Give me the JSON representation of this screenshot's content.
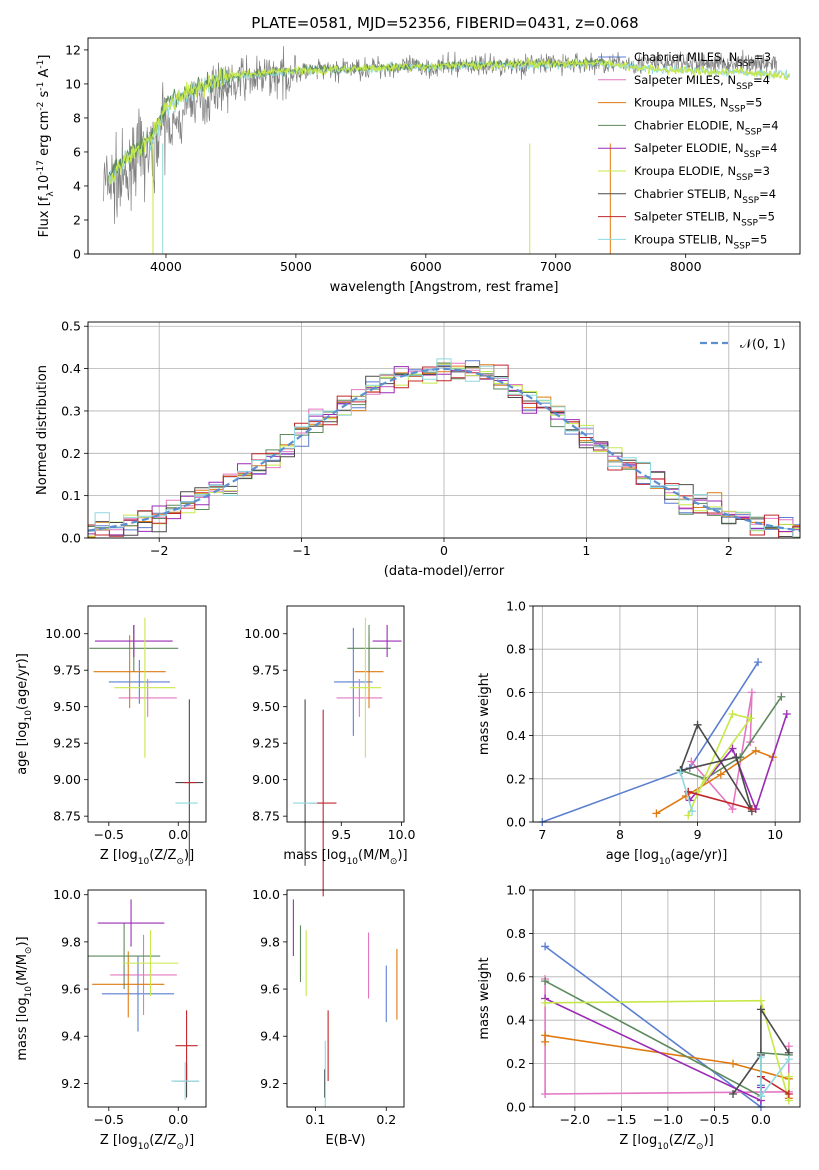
{
  "figure": {
    "title": "PLATE=0581, MJD=52356, FIBERID=0431, z=0.068"
  },
  "models": [
    {
      "name": "Chabrier MILES, N",
      "sub": "SSP",
      "tail": "=3",
      "color": "#5b7fd0"
    },
    {
      "name": "Salpeter MILES, N",
      "sub": "SSP",
      "tail": "=4",
      "color": "#e377c2"
    },
    {
      "name": "Kroupa MILES, N",
      "sub": "SSP",
      "tail": "=5",
      "color": "#e07a10"
    },
    {
      "name": "Chabrier ELODIE, N",
      "sub": "SSP",
      "tail": "=4",
      "color": "#5e8a5e"
    },
    {
      "name": "Salpeter ELODIE, N",
      "sub": "SSP",
      "tail": "=4",
      "color": "#9b2bb5"
    },
    {
      "name": "Kroupa ELODIE, N",
      "sub": "SSP",
      "tail": "=3",
      "color": "#c7e84a"
    },
    {
      "name": "Chabrier STELIB, N",
      "sub": "SSP",
      "tail": "=4",
      "color": "#4a4a4a"
    },
    {
      "name": "Salpeter STELIB, N",
      "sub": "SSP",
      "tail": "=5",
      "color": "#c0272d"
    },
    {
      "name": "Kroupa STELIB, N",
      "sub": "SSP",
      "tail": "=5",
      "color": "#8fd9e0"
    }
  ],
  "chart_data": [
    {
      "id": "spectrum",
      "type": "line",
      "xlabel": "wavelength [Angstrom, rest frame]",
      "ylabel": "Flux [f",
      "ylabel_sub": "λ",
      "ylabel_tail": "10",
      "ylabel_exp": "-17",
      "ylabel_units": " erg cm",
      "ylabel_exp2": "-2",
      "ylabel_s": " s",
      "ylabel_exp3": "-1",
      "ylabel_A": " A",
      "ylabel_exp4": "-1",
      "ylabel_end": "]",
      "xlim": [
        3400,
        8880
      ],
      "ylim": [
        0,
        12.7
      ],
      "xticks": [
        4000,
        5000,
        6000,
        7000,
        8000
      ],
      "yticks": [
        0,
        2,
        4,
        6,
        8,
        10,
        12
      ],
      "legend": "right",
      "series": [
        {
          "model": 8,
          "x": [
            3560,
            3700,
            3900,
            4000,
            4200,
            4400,
            4600,
            4800,
            5000,
            5200,
            5400,
            5600,
            5800,
            6000,
            6200,
            6400,
            6600,
            6800,
            7000,
            7200,
            7400,
            7600,
            7800,
            8000,
            8200,
            8400,
            8600,
            8800
          ],
          "y": [
            4.2,
            5.5,
            6.8,
            8.6,
            9.6,
            10.2,
            10.5,
            10.6,
            10.8,
            10.8,
            10.9,
            10.9,
            11.0,
            11.0,
            11.0,
            11.1,
            11.1,
            11.1,
            11.1,
            11.2,
            11.2,
            11.0,
            10.8,
            10.8,
            10.7,
            10.7,
            10.6,
            10.6
          ]
        },
        {
          "model": 3,
          "x": [
            3560,
            3700,
            3900,
            4000,
            4200,
            4400,
            4600,
            4800,
            5000,
            5200,
            5400,
            5600,
            5800,
            6000,
            6200,
            6400,
            6600,
            6800,
            7000,
            7200,
            7400
          ],
          "y": [
            4.6,
            5.7,
            7.0,
            8.8,
            9.7,
            10.3,
            10.5,
            10.7,
            10.8,
            10.9,
            10.9,
            11.0,
            11.0,
            11.1,
            11.1,
            11.1,
            11.2,
            11.2,
            11.2,
            11.3,
            11.3
          ]
        },
        {
          "model": 5,
          "x": [
            3560,
            3700,
            3900,
            4000,
            4200,
            4400,
            4600,
            4800,
            5000,
            5200,
            5400,
            5600,
            5800,
            6000,
            6200,
            6400,
            6600,
            6800,
            7000,
            7200,
            7400,
            7600,
            7800,
            8000,
            8200,
            8400,
            8600,
            8800
          ],
          "y": [
            4.4,
            5.6,
            6.9,
            8.7,
            9.6,
            10.3,
            10.6,
            10.7,
            10.8,
            10.8,
            10.9,
            10.9,
            11.0,
            11.0,
            11.1,
            11.1,
            11.1,
            11.2,
            11.2,
            11.2,
            11.2,
            11.0,
            10.8,
            10.8,
            10.7,
            10.7,
            10.6,
            10.5
          ]
        }
      ],
      "observed": {
        "x0": 3520,
        "x1": 7420,
        "ymean": [
          4.2,
          5.8,
          7.5,
          9.0,
          9.8,
          10.3,
          10.5,
          10.7,
          10.8,
          10.9,
          11.0,
          11.0,
          11.0,
          11.1,
          11.1,
          11.1,
          11.2,
          11.2,
          11.2,
          11.2
        ],
        "scatter": 1.8
      }
    },
    {
      "id": "residuals",
      "type": "histogram",
      "xlabel": "(data-model)/error",
      "ylabel": "Normed distribution",
      "xlim": [
        -2.5,
        2.5
      ],
      "ylim": [
        0,
        0.51
      ],
      "xticks": [
        -2,
        -1,
        0,
        1,
        2
      ],
      "yticks": [
        0.0,
        0.1,
        0.2,
        0.3,
        0.4,
        0.5
      ],
      "bin_width": 0.1,
      "reference_label": "𝒩(0, 1)",
      "legend": "top-right",
      "grid": true
    },
    {
      "id": "age-vs-Z",
      "type": "errorbar",
      "xlabel": "Z [log",
      "xlabel_sub": "10",
      "xlabel_tail": "(Z/Z",
      "xlabel_sub2": "⊙",
      "xlabel_end": ")]",
      "ylabel": "age  [log",
      "ylabel_sub": "10",
      "ylabel_tail": "(age/yr)]",
      "xlim": [
        -0.65,
        0.2
      ],
      "ylim": [
        8.71,
        10.19
      ],
      "xticks": [
        -0.5,
        0.0
      ],
      "xticklabels": [
        "−0.5",
        "0.0"
      ],
      "yticks": [
        8.75,
        9.0,
        9.25,
        9.5,
        9.75,
        10.0
      ],
      "points": [
        {
          "model": 0,
          "x": -0.28,
          "xerr": 0.22,
          "y": 9.67,
          "yerr": 0.15
        },
        {
          "model": 1,
          "x": -0.22,
          "xerr": 0.21,
          "y": 9.56,
          "yerr": 0.13
        },
        {
          "model": 2,
          "x": -0.35,
          "xerr": 0.26,
          "y": 9.74,
          "yerr": 0.25
        },
        {
          "model": 3,
          "x": -0.32,
          "xerr": 0.32,
          "y": 9.9,
          "yerr": 0.16
        },
        {
          "model": 4,
          "x": -0.32,
          "xerr": 0.28,
          "y": 9.95,
          "yerr": 0.11
        },
        {
          "model": 5,
          "x": -0.24,
          "xerr": 0.22,
          "y": 9.63,
          "yerr": 0.48
        },
        {
          "model": 6,
          "x": 0.08,
          "xerr": 0.1,
          "y": 8.98,
          "yerr": 0.57
        },
        {
          "model": 7,
          "x": 0.08,
          "xerr": 0.0,
          "y": 8.98,
          "yerr": 0.0
        },
        {
          "model": 8,
          "x": 0.06,
          "xerr": 0.08,
          "y": 8.84,
          "yerr": 0.0
        }
      ]
    },
    {
      "id": "age-vs-mass",
      "type": "errorbar",
      "xlabel": "mass [log",
      "xlabel_sub": "10",
      "xlabel_tail": "(M/M",
      "xlabel_sub2": "⊙",
      "xlabel_end": ")]",
      "xlim": [
        9.05,
        10.02
      ],
      "ylim": [
        8.71,
        10.19
      ],
      "xticks": [
        9.5,
        10.0
      ],
      "xticklabels": [
        "9.5",
        "10.0"
      ],
      "yticks": [
        8.75,
        9.0,
        9.25,
        9.5,
        9.75,
        10.0
      ],
      "yticklabels": [
        "8.75",
        "9.00",
        "9.25",
        "9.50",
        "9.75",
        "10.00"
      ],
      "points": [
        {
          "model": 0,
          "x": 9.6,
          "xerr": 0.16,
          "y": 9.67,
          "yerr": 0.37
        },
        {
          "model": 1,
          "x": 9.65,
          "xerr": 0.19,
          "y": 9.56,
          "yerr": 0.13
        },
        {
          "model": 2,
          "x": 9.73,
          "xerr": 0.12,
          "y": 9.74,
          "yerr": 0.25
        },
        {
          "model": 3,
          "x": 9.73,
          "xerr": 0.18,
          "y": 9.9,
          "yerr": 0.16
        },
        {
          "model": 4,
          "x": 9.88,
          "xerr": 0.12,
          "y": 9.95,
          "yerr": 0.11
        },
        {
          "model": 5,
          "x": 9.7,
          "xerr": 0.13,
          "y": 9.63,
          "yerr": 0.48
        },
        {
          "model": 6,
          "x": 9.2,
          "xerr": 0.0,
          "y": 8.98,
          "yerr": 0.57
        },
        {
          "model": 7,
          "x": 9.35,
          "xerr": 0.11,
          "y": 8.84,
          "yerr": 0.64
        },
        {
          "model": 8,
          "x": 9.2,
          "xerr": 0.1,
          "y": 8.84,
          "yerr": 0.0
        }
      ]
    },
    {
      "id": "mass-weight-vs-age",
      "type": "line",
      "xlabel": "age  [log",
      "xlabel_sub": "10",
      "xlabel_tail": "(age/yr)]",
      "ylabel": "mass weight",
      "xlim": [
        6.88,
        10.32
      ],
      "ylim": [
        0,
        1.0
      ],
      "xticks": [
        7,
        8,
        9,
        10
      ],
      "yticks": [
        0.0,
        0.2,
        0.4,
        0.6,
        0.8,
        1.0
      ],
      "grid": true,
      "series": [
        {
          "model": 0,
          "x": [
            7.0,
            8.9,
            9.78
          ],
          "y": [
            0.0,
            0.25,
            0.74
          ]
        },
        {
          "model": 1,
          "x": [
            8.92,
            9.45,
            9.7,
            9.68
          ],
          "y": [
            0.28,
            0.06,
            0.6,
            0.37
          ]
        },
        {
          "model": 2,
          "x": [
            8.47,
            8.85,
            9.3,
            9.75,
            9.97
          ],
          "y": [
            0.04,
            0.12,
            0.22,
            0.33,
            0.3
          ]
        },
        {
          "model": 3,
          "x": [
            8.78,
            9.1,
            9.55,
            10.08
          ],
          "y": [
            0.24,
            0.2,
            0.3,
            0.58
          ]
        },
        {
          "model": 4,
          "x": [
            8.9,
            9.45,
            9.75,
            10.15
          ],
          "y": [
            0.1,
            0.34,
            0.06,
            0.5
          ]
        },
        {
          "model": 5,
          "x": [
            8.88,
            9.45,
            9.68,
            9.0
          ],
          "y": [
            0.03,
            0.5,
            0.48,
            0.14
          ]
        },
        {
          "model": 6,
          "x": [
            8.78,
            9.0,
            9.7,
            9.5,
            8.8
          ],
          "y": [
            0.24,
            0.45,
            0.05,
            0.3,
            0.24
          ]
        },
        {
          "model": 7,
          "x": [
            8.88,
            9.7
          ],
          "y": [
            0.14,
            0.06
          ]
        },
        {
          "model": 8,
          "x": [
            8.78,
            8.93
          ],
          "y": [
            0.23,
            0.05
          ]
        }
      ]
    },
    {
      "id": "mass-vs-Z",
      "type": "errorbar",
      "xlabel": "Z [log",
      "xlabel_sub": "10",
      "xlabel_tail": "(Z/Z",
      "xlabel_sub2": "⊙",
      "xlabel_end": ")]",
      "ylabel": "mass [log",
      "ylabel_sub": "10",
      "ylabel_tail": "(M/M",
      "ylabel_sub2": "⊙",
      "ylabel_end": ")]",
      "xlim": [
        -0.65,
        0.2
      ],
      "ylim": [
        9.1,
        10.02
      ],
      "xticks": [
        -0.5,
        0.0
      ],
      "xticklabels": [
        "−0.5",
        "0.0"
      ],
      "yticks": [
        9.2,
        9.4,
        9.6,
        9.8,
        10.0
      ],
      "points": [
        {
          "model": 0,
          "x": -0.29,
          "xerr": 0.26,
          "y": 9.58,
          "yerr": 0.16
        },
        {
          "model": 1,
          "x": -0.25,
          "xerr": 0.24,
          "y": 9.66,
          "yerr": 0.17
        },
        {
          "model": 2,
          "x": -0.36,
          "xerr": 0.26,
          "y": 9.62,
          "yerr": 0.14
        },
        {
          "model": 3,
          "x": -0.39,
          "xerr": 0.26,
          "y": 9.74,
          "yerr": 0.14
        },
        {
          "model": 4,
          "x": -0.34,
          "xerr": 0.24,
          "y": 9.88,
          "yerr": 0.1
        },
        {
          "model": 5,
          "x": -0.2,
          "xerr": 0.2,
          "y": 9.71,
          "yerr": 0.14
        },
        {
          "model": 6,
          "x": 0.06,
          "xerr": 0.09,
          "y": 9.21,
          "yerr": 0.07
        },
        {
          "model": 7,
          "x": 0.06,
          "xerr": 0.08,
          "y": 9.36,
          "yerr": 0.15
        },
        {
          "model": 8,
          "x": 0.05,
          "xerr": 0.1,
          "y": 9.21,
          "yerr": 0.08
        }
      ]
    },
    {
      "id": "mass-vs-ebv",
      "type": "errorbar",
      "xlabel": "E(B-V)",
      "xlim": [
        0.06,
        0.225
      ],
      "ylim": [
        9.1,
        10.02
      ],
      "xticks": [
        0.1,
        0.2
      ],
      "xticklabels": [
        "0.1",
        "0.2"
      ],
      "yticks": [
        9.2,
        9.4,
        9.6,
        9.8,
        10.0
      ],
      "points": [
        {
          "model": 0,
          "x": 0.2,
          "xerr": 0,
          "y": 9.58,
          "yerr": 0.12
        },
        {
          "model": 1,
          "x": 0.175,
          "xerr": 0,
          "y": 9.7,
          "yerr": 0.14
        },
        {
          "model": 2,
          "x": 0.215,
          "xerr": 0,
          "y": 9.62,
          "yerr": 0.15
        },
        {
          "model": 3,
          "x": 0.079,
          "xerr": 0,
          "y": 9.75,
          "yerr": 0.12
        },
        {
          "model": 4,
          "x": 0.069,
          "xerr": 0,
          "y": 9.86,
          "yerr": 0.12
        },
        {
          "model": 5,
          "x": 0.087,
          "xerr": 0,
          "y": 9.71,
          "yerr": 0.14
        },
        {
          "model": 6,
          "x": 0.113,
          "xerr": 0,
          "y": 9.2,
          "yerr": 0.06
        },
        {
          "model": 7,
          "x": 0.118,
          "xerr": 0,
          "y": 9.36,
          "yerr": 0.15
        },
        {
          "model": 8,
          "x": 0.114,
          "xerr": 0,
          "y": 9.24,
          "yerr": 0.14
        }
      ]
    },
    {
      "id": "mass-weight-vs-Z",
      "type": "line",
      "xlabel": "Z [log",
      "xlabel_sub": "10",
      "xlabel_tail": "(Z/Z",
      "xlabel_sub2": "⊙",
      "xlabel_end": ")]",
      "ylabel": "mass weight",
      "xlim": [
        -2.45,
        0.42
      ],
      "ylim": [
        0,
        1.0
      ],
      "xticks": [
        -2.0,
        -1.5,
        -1.0,
        -0.5,
        0.0
      ],
      "xticklabels": [
        "−2.0",
        "−1.5",
        "−1.0",
        "−0.5",
        "0.0"
      ],
      "yticks": [
        0.0,
        0.2,
        0.4,
        0.6,
        0.8,
        1.0
      ],
      "grid": true,
      "series": [
        {
          "model": 0,
          "x": [
            -2.32,
            0.0,
            0.0
          ],
          "y": [
            0.74,
            0.0,
            0.1
          ]
        },
        {
          "model": 1,
          "x": [
            -2.32,
            -2.32,
            0.3,
            0.3
          ],
          "y": [
            0.59,
            0.06,
            0.07,
            0.28
          ]
        },
        {
          "model": 2,
          "x": [
            -2.32,
            -2.32,
            -0.3,
            0.3,
            0.3
          ],
          "y": [
            0.3,
            0.33,
            0.2,
            0.13,
            0.04
          ]
        },
        {
          "model": 3,
          "x": [
            -2.32,
            0.0,
            0.0,
            0.3
          ],
          "y": [
            0.58,
            0.05,
            0.25,
            0.24
          ]
        },
        {
          "model": 4,
          "x": [
            -2.32,
            0.0,
            0.0
          ],
          "y": [
            0.5,
            0.03,
            0.09
          ]
        },
        {
          "model": 5,
          "x": [
            -2.32,
            0.0,
            0.3,
            0.3
          ],
          "y": [
            0.48,
            0.49,
            0.03,
            0.14
          ]
        },
        {
          "model": 6,
          "x": [
            -0.3,
            0.0,
            0.0,
            0.3
          ],
          "y": [
            0.06,
            0.24,
            0.45,
            0.25
          ]
        },
        {
          "model": 7,
          "x": [
            0.0,
            0.3
          ],
          "y": [
            0.14,
            0.06
          ]
        },
        {
          "model": 8,
          "x": [
            0.0,
            0.0,
            0.3
          ],
          "y": [
            0.23,
            0.05,
            0.22
          ]
        }
      ]
    }
  ]
}
